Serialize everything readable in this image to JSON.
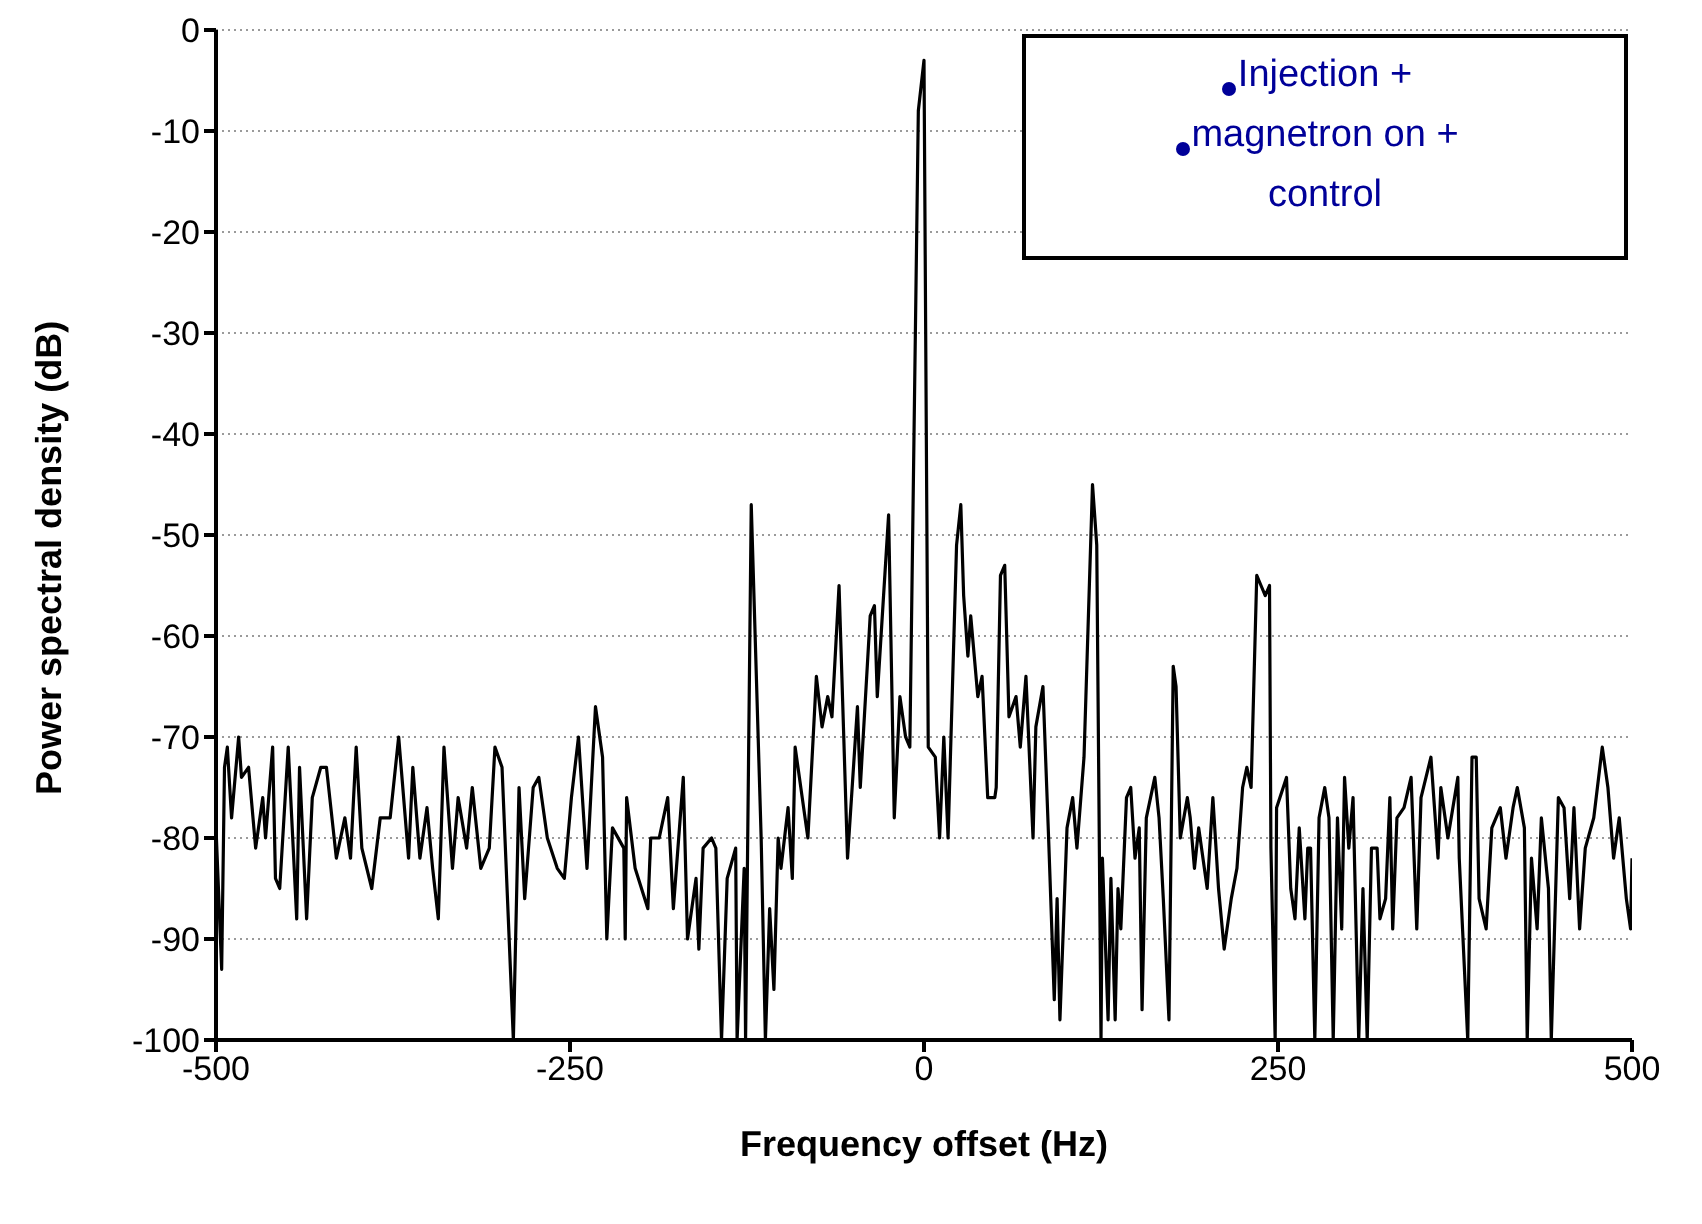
{
  "chart_data": {
    "type": "line",
    "xlabel": "Frequency offset (Hz)",
    "ylabel": "Power spectral density (dB)",
    "annotations": [
      "Injection + magnetron on + control"
    ],
    "xlim": [
      -500,
      500
    ],
    "xticks": [
      -500,
      -250,
      0,
      250,
      500
    ],
    "ylim": [
      -100,
      0
    ],
    "yticks": [
      0,
      -10,
      -20,
      -30,
      -40,
      -50,
      -60,
      -70,
      -80,
      -90,
      -100
    ],
    "grid": "y",
    "legend": false,
    "marker": "none",
    "line_style": "solid",
    "series": [
      {
        "color": "#000000",
        "x": [
          -500,
          -496,
          -494,
          -492,
          -489,
          -484,
          -482,
          -477,
          -472,
          -467,
          -465,
          -460,
          -458,
          -455,
          -449,
          -443,
          -441,
          -436,
          -432,
          -426,
          -422,
          -415,
          -409,
          -405,
          -401,
          -397,
          -390,
          -384,
          -377,
          -371,
          -364,
          -361,
          -356,
          -351,
          -347,
          -343,
          -339,
          -333,
          -329,
          -323,
          -319,
          -313,
          -307,
          -303,
          -298,
          -290,
          -286,
          -282,
          -276,
          -272,
          -266,
          -259,
          -254,
          -249,
          -244,
          -238,
          -232,
          -227,
          -224,
          -220,
          -212,
          -211,
          -210,
          -204,
          -195,
          -193,
          -187,
          -181,
          -177,
          -170,
          -167,
          -161,
          -159,
          -156,
          -150,
          -147,
          -143,
          -139,
          -133,
          -132,
          -127,
          -126,
          -122,
          -115,
          -112,
          -109,
          -106,
          -103,
          -101,
          -96,
          -93,
          -91,
          -86,
          -82,
          -76,
          -72,
          -68,
          -65,
          -60,
          -54,
          -47,
          -45,
          -38,
          -35,
          -33,
          -25,
          -21,
          -17,
          -13,
          -10,
          -4,
          0,
          3,
          8,
          11,
          14,
          17,
          23,
          26,
          28,
          31,
          33,
          38,
          41,
          45,
          50,
          51,
          54,
          57,
          60,
          65,
          68,
          72,
          77,
          79,
          84,
          88,
          92,
          94,
          96,
          101,
          105,
          108,
          113,
          119,
          122,
          125,
          126,
          130,
          132,
          135,
          137,
          139,
          143,
          146,
          149,
          152,
          154,
          157,
          160,
          163,
          166,
          169,
          173,
          176,
          178,
          181,
          186,
          188,
          191,
          194,
          200,
          204,
          208,
          212,
          217,
          221,
          225,
          228,
          231,
          235,
          238,
          241,
          244,
          245,
          248,
          249,
          256,
          259,
          262,
          265,
          269,
          271,
          273,
          276,
          279,
          283,
          286,
          289,
          292,
          295,
          297,
          300,
          303,
          307,
          310,
          313,
          316,
          320,
          322,
          326,
          329,
          331,
          334,
          339,
          344,
          348,
          351,
          358,
          363,
          365,
          370,
          377,
          378,
          384,
          387,
          390,
          392,
          397,
          401,
          407,
          411,
          416,
          419,
          424,
          426,
          429,
          433,
          436,
          441,
          443,
          448,
          452,
          456,
          459,
          463,
          467,
          473,
          479,
          483,
          487,
          491,
          496,
          499,
          500
        ],
        "values": [
          -79,
          -93,
          -73,
          -71,
          -78,
          -70,
          -74,
          -73,
          -81,
          -76,
          -80,
          -71,
          -84,
          -85,
          -71,
          -88,
          -73,
          -88,
          -76,
          -73,
          -73,
          -82,
          -78,
          -82,
          -71,
          -81,
          -85,
          -78,
          -78,
          -70,
          -82,
          -73,
          -82,
          -77,
          -83,
          -88,
          -71,
          -83,
          -76,
          -81,
          -75,
          -83,
          -81,
          -71,
          -73,
          -100,
          -75,
          -86,
          -75,
          -74,
          -80,
          -83,
          -84,
          -76,
          -70,
          -83,
          -67,
          -72,
          -90,
          -79,
          -81,
          -90,
          -76,
          -83,
          -87,
          -80,
          -80,
          -76,
          -87,
          -74,
          -90,
          -84,
          -91,
          -81,
          -80,
          -81,
          -100,
          -84,
          -81,
          -100,
          -83,
          -100,
          -47,
          -80,
          -100,
          -87,
          -95,
          -80,
          -83,
          -77,
          -84,
          -71,
          -76,
          -80,
          -64,
          -69,
          -66,
          -68,
          -55,
          -82,
          -67,
          -75,
          -58,
          -57,
          -66,
          -48,
          -78,
          -66,
          -70,
          -71,
          -8,
          -3,
          -71,
          -72,
          -80,
          -70,
          -80,
          -51,
          -47,
          -56,
          -62,
          -58,
          -66,
          -64,
          -76,
          -76,
          -75,
          -54,
          -53,
          -68,
          -66,
          -71,
          -64,
          -80,
          -69,
          -65,
          -80,
          -96,
          -86,
          -98,
          -79,
          -76,
          -81,
          -72,
          -45,
          -51,
          -100,
          -82,
          -98,
          -84,
          -98,
          -85,
          -89,
          -76,
          -75,
          -82,
          -79,
          -97,
          -78,
          -76,
          -74,
          -78,
          -86,
          -98,
          -63,
          -65,
          -80,
          -76,
          -78,
          -83,
          -79,
          -85,
          -76,
          -85,
          -91,
          -86,
          -83,
          -75,
          -73,
          -75,
          -54,
          -55,
          -56,
          -55,
          -81,
          -100,
          -77,
          -74,
          -85,
          -88,
          -79,
          -88,
          -81,
          -81,
          -100,
          -78,
          -75,
          -78,
          -100,
          -78,
          -89,
          -74,
          -81,
          -76,
          -100,
          -85,
          -100,
          -81,
          -81,
          -88,
          -86,
          -76,
          -89,
          -78,
          -77,
          -74,
          -89,
          -76,
          -72,
          -82,
          -75,
          -80,
          -74,
          -82,
          -100,
          -72,
          -72,
          -86,
          -89,
          -79,
          -77,
          -82,
          -77,
          -75,
          -79,
          -100,
          -82,
          -89,
          -78,
          -85,
          -100,
          -76,
          -77,
          -86,
          -77,
          -89,
          -81,
          -78,
          -71,
          -75,
          -82,
          -78,
          -86,
          -89,
          -82
        ]
      }
    ]
  }
}
